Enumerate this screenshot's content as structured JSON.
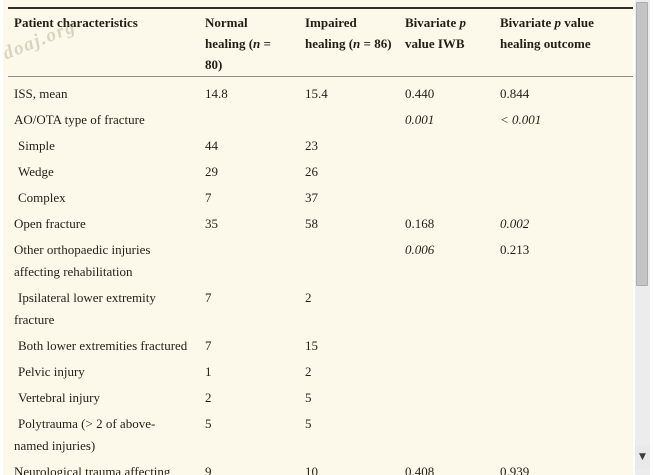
{
  "watermark": {
    "text": "doaj.org"
  },
  "colors": {
    "panel_bg": "#fcf9ea",
    "top_border": "#332f26",
    "header_underline": "#8f8c85",
    "text": "#241f14",
    "scroll_track": "#ececec",
    "scroll_thumb": "#c4c4c4"
  },
  "table": {
    "headers": [
      [
        {
          "t": "Patient characteristics"
        }
      ],
      [
        {
          "t": "Normal\nhealing ("
        },
        {
          "t": "n",
          "i": true
        },
        {
          "t": " =\n80)"
        }
      ],
      [
        {
          "t": "Impaired\nhealing ("
        },
        {
          "t": "n",
          "i": true
        },
        {
          "t": " = 86)"
        }
      ],
      [
        {
          "t": "Bivariate "
        },
        {
          "t": "p",
          "i": true
        },
        {
          "t": "\nvalue IWB"
        }
      ],
      [
        {
          "t": "Bivariate "
        },
        {
          "t": "p",
          "i": true
        },
        {
          "t": " value\nhealing outcome"
        }
      ]
    ],
    "rows": [
      {
        "label": "ISS, mean",
        "indent": false,
        "cells": [
          "14.8",
          "15.4",
          "0.440",
          "0.844"
        ]
      },
      {
        "label": "AO/OTA type of fracture",
        "indent": false,
        "cells": [
          "",
          "",
          [
            {
              "t": "0.001",
              "i": true
            }
          ],
          [
            {
              "t": "< 0.001",
              "i": true
            }
          ]
        ]
      },
      {
        "label": "Simple",
        "indent": true,
        "cells": [
          "44",
          "23",
          "",
          ""
        ]
      },
      {
        "label": "Wedge",
        "indent": true,
        "cells": [
          "29",
          "26",
          "",
          ""
        ]
      },
      {
        "label": "Complex",
        "indent": true,
        "cells": [
          "7",
          "37",
          "",
          ""
        ]
      },
      {
        "label": "Open fracture",
        "indent": false,
        "cells": [
          "35",
          "58",
          "0.168",
          [
            {
              "t": "0.002",
              "i": true
            }
          ]
        ]
      },
      {
        "label": "Other orthopaedic injuries\naffecting rehabilitation",
        "indent": false,
        "cells": [
          "",
          "",
          [
            {
              "t": "0.006",
              "i": true
            }
          ],
          "0.213"
        ]
      },
      {
        "label": "Ipsilateral lower extremity\nfracture",
        "indent": true,
        "cells": [
          "7",
          "2",
          "",
          ""
        ]
      },
      {
        "label": "Both lower extremities fractured",
        "indent": true,
        "cells": [
          "7",
          "15",
          "",
          ""
        ]
      },
      {
        "label": "Pelvic injury",
        "indent": true,
        "cells": [
          "1",
          "2",
          "",
          ""
        ]
      },
      {
        "label": "Vertebral injury",
        "indent": true,
        "cells": [
          "2",
          "5",
          "",
          ""
        ]
      },
      {
        "label": "Polytrauma (> 2 of above-\nnamed injuries)",
        "indent": true,
        "cells": [
          "5",
          "5",
          "",
          ""
        ]
      },
      {
        "label": "Neurological trauma affecting",
        "indent": false,
        "cells": [
          "9",
          "10",
          "0.408",
          "0.939"
        ]
      }
    ]
  },
  "scrollbar": {
    "down_arrow": "▼"
  }
}
